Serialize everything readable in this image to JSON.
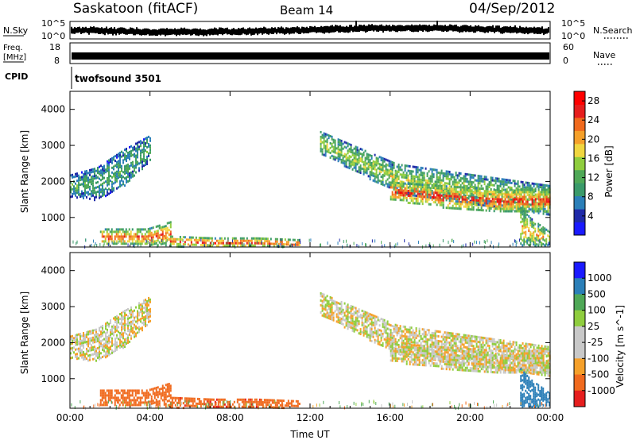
{
  "header": {
    "station": "Saskatoon (fitACF)",
    "beam": "Beam 14",
    "date": "04/Sep/2012"
  },
  "noise_panel": {
    "left_label": "N.Sky",
    "right_label": "N.Search",
    "left_ticks": [
      "10^5",
      "10^0"
    ],
    "right_ticks": [
      "10^5",
      "10^0"
    ]
  },
  "freq_panel": {
    "left_label_1": "Freq.",
    "left_label_2": "[MHz]",
    "left_ticks": [
      "18",
      "8"
    ],
    "right_label": "Nave",
    "right_ticks": [
      "60",
      "0"
    ]
  },
  "cpid_panel": {
    "label": "CPID",
    "program": "twofsound 3501"
  },
  "colors": {
    "power_scale": [
      "#1a1aff",
      "#1f2aa8",
      "#2b7fb8",
      "#3a9a6a",
      "#4fa857",
      "#8fcd3e",
      "#f0d640",
      "#f5a02a",
      "#f06a1e",
      "#e61e1e",
      "#ff0000"
    ],
    "velocity_scale": [
      "#e61e1e",
      "#f06a1e",
      "#f5a02a",
      "#c8c8c8",
      "#c8c8c8",
      "#8fcd3e",
      "#4fa857",
      "#2b7fb8",
      "#1a1aff"
    ],
    "velocity_ground": "#c8c8c8"
  },
  "chart_data": [
    {
      "type": "heatmap",
      "title": "",
      "xlabel": "",
      "ylabel": "Slant Range [km]",
      "x_ticks": [
        "00:00",
        "04:00",
        "08:00",
        "12:00",
        "16:00",
        "20:00",
        "00:00"
      ],
      "y_ticks": [
        "1000",
        "2000",
        "3000",
        "4000"
      ],
      "xlim_hours": [
        0,
        24
      ],
      "ylim_km": [
        180,
        4500
      ],
      "colorbar_label": "Power [dB]",
      "colorbar_ticks": [
        "4",
        "8",
        "12",
        "16",
        "20",
        "24",
        "28"
      ],
      "colorbar_range": [
        0,
        30
      ],
      "echo_regions": [
        {
          "t0": 0.0,
          "t1": 4.0,
          "r_top": [
            2200,
            2400,
            2900,
            3300
          ],
          "r_bot": [
            1600,
            1500,
            1900,
            2600
          ],
          "power": 10
        },
        {
          "t0": 1.5,
          "t1": 5.0,
          "r_top": [
            700,
            700,
            700,
            900
          ],
          "r_bot": [
            250,
            250,
            250,
            250
          ],
          "power": 22
        },
        {
          "t0": 5.0,
          "t1": 11.5,
          "r_top": [
            500,
            450,
            450,
            400
          ],
          "r_bot": [
            220,
            220,
            220,
            220
          ],
          "power": 24
        },
        {
          "t0": 12.5,
          "t1": 24.0,
          "r_top": [
            3400,
            2500,
            2200,
            1900
          ],
          "r_bot": [
            2800,
            1700,
            1400,
            1100
          ],
          "power": 14
        },
        {
          "t0": 16.0,
          "t1": 24.0,
          "r_top": [
            2000,
            1900,
            1800,
            1800
          ],
          "r_bot": [
            1500,
            1300,
            1200,
            1200
          ],
          "power": 24
        },
        {
          "t0": 22.5,
          "t1": 24.0,
          "r_top": [
            1300,
            1000,
            800,
            600
          ],
          "r_bot": [
            250,
            250,
            250,
            250
          ],
          "power": 18
        }
      ]
    },
    {
      "type": "heatmap",
      "title": "",
      "xlabel": "Time UT",
      "ylabel": "Slant Range [km]",
      "x_ticks": [
        "00:00",
        "04:00",
        "08:00",
        "12:00",
        "16:00",
        "20:00",
        "00:00"
      ],
      "y_ticks": [
        "1000",
        "2000",
        "3000",
        "4000"
      ],
      "xlim_hours": [
        0,
        24
      ],
      "ylim_km": [
        180,
        4500
      ],
      "colorbar_label": "Velocity [m s^-1]",
      "colorbar_ticks": [
        "1000",
        "500",
        "100",
        "25",
        "-25",
        "-100",
        "-500",
        "-1000"
      ],
      "echo_regions": [
        {
          "t0": 0.0,
          "t1": 4.0,
          "r_top": [
            2200,
            2400,
            2900,
            3300
          ],
          "r_bot": [
            1600,
            1500,
            1900,
            2600
          ],
          "velocity": 0
        },
        {
          "t0": 1.5,
          "t1": 5.0,
          "r_top": [
            700,
            700,
            700,
            900
          ],
          "r_bot": [
            250,
            250,
            250,
            250
          ],
          "velocity": -150
        },
        {
          "t0": 5.0,
          "t1": 11.5,
          "r_top": [
            500,
            450,
            450,
            400
          ],
          "r_bot": [
            220,
            220,
            220,
            220
          ],
          "velocity": -250
        },
        {
          "t0": 12.5,
          "t1": 24.0,
          "r_top": [
            3400,
            2500,
            2200,
            1900
          ],
          "r_bot": [
            2800,
            1700,
            1400,
            1100
          ],
          "velocity": 0
        },
        {
          "t0": 16.0,
          "t1": 24.0,
          "r_top": [
            2000,
            1900,
            1800,
            1800
          ],
          "r_bot": [
            1500,
            1300,
            1200,
            1200
          ],
          "velocity": 0
        },
        {
          "t0": 22.5,
          "t1": 24.0,
          "r_top": [
            1300,
            1000,
            800,
            600
          ],
          "r_bot": [
            250,
            250,
            250,
            250
          ],
          "velocity": 400
        }
      ]
    }
  ]
}
